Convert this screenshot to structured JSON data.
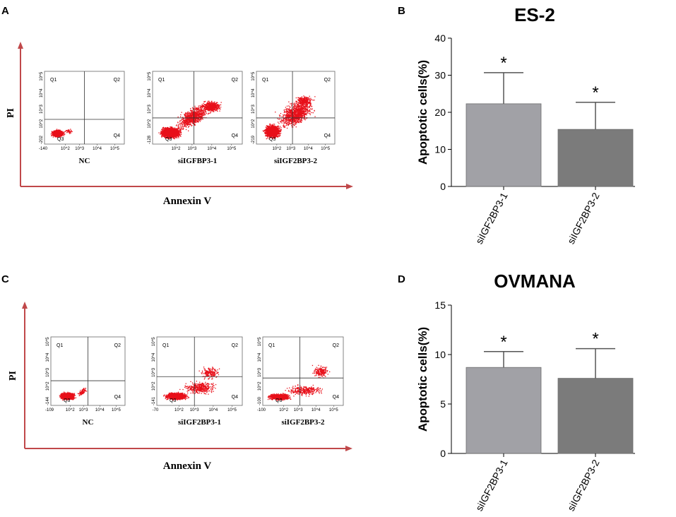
{
  "panels": {
    "a": {
      "label": "A",
      "y_axis": "PI",
      "x_axis": "Annexin V",
      "plots": [
        {
          "name": "NC",
          "quadrants": [
            "Q1",
            "Q2",
            "Q3",
            "Q4"
          ],
          "xticks": [
            "10^2",
            "10^3",
            "10^4",
            "10^5"
          ],
          "xzero": "-140",
          "yticks": [
            "10^2",
            "10^3",
            "10^4",
            "10^5"
          ],
          "yzero": "-202"
        },
        {
          "name": "siIGFBP3-1",
          "quadrants": [
            "Q1",
            "Q2",
            "Q3",
            "Q4"
          ],
          "xticks": [
            "10^2",
            "10^3",
            "10^4",
            "10^5"
          ],
          "xzero": "",
          "yticks": [
            "10^2",
            "10^3",
            "10^4",
            "10^5"
          ],
          "yzero": "-128"
        },
        {
          "name": "siIGF2BP3-2",
          "quadrants": [
            "Q1",
            "Q2",
            "Q3",
            "Q4"
          ],
          "xticks": [
            "10^2",
            "10^3",
            "10^4",
            "10^5"
          ],
          "xzero": "",
          "yticks": [
            "10^2",
            "10^3",
            "10^4",
            "10^5"
          ],
          "yzero": "-219"
        }
      ]
    },
    "c": {
      "label": "C",
      "y_axis": "PI",
      "x_axis": "Annexin V",
      "plots": [
        {
          "name": "NC",
          "quadrants": [
            "Q1",
            "Q2",
            "Q3",
            "Q4"
          ],
          "xticks": [
            "10^2",
            "10^3",
            "10^4",
            "10^5"
          ],
          "xzero": "-109",
          "yticks": [
            "10^2",
            "10^3",
            "10^4",
            "10^5"
          ],
          "yzero": "-144"
        },
        {
          "name": "siIGF2BP3-1",
          "quadrants": [
            "Q1",
            "Q2",
            "Q3",
            "Q4"
          ],
          "xticks": [
            "10^2",
            "10^3",
            "10^4",
            "10^5"
          ],
          "xzero": "-70",
          "yticks": [
            "10^2",
            "10^3",
            "10^4",
            "10^5"
          ],
          "yzero": "-141"
        },
        {
          "name": "siIGF2BP3-2",
          "quadrants": [
            "Q1",
            "Q2",
            "Q3",
            "Q4"
          ],
          "xticks": [
            "10^2",
            "10^3",
            "10^4",
            "10^5"
          ],
          "xzero": "-100",
          "yticks": [
            "10^2",
            "10^3",
            "10^4",
            "10^5"
          ],
          "yzero": "-100"
        }
      ]
    }
  },
  "chart_data": [
    {
      "panel": "B",
      "type": "bar",
      "title": "ES-2",
      "ylabel": "Apoptotic cells(%)",
      "xlabel": "",
      "categories": [
        "siIGF2BP3-1",
        "siIGF2BP3-2"
      ],
      "values": [
        22.3,
        15.4
      ],
      "errors": [
        8.4,
        7.3
      ],
      "significance": [
        "*",
        "*"
      ],
      "ylim": [
        0,
        40
      ],
      "yticks": [
        0,
        10,
        20,
        30,
        40
      ],
      "colors": [
        "#a1a1a6",
        "#7b7b7b"
      ]
    },
    {
      "panel": "D",
      "type": "bar",
      "title": "OVMANA",
      "ylabel": "Apoptotic cells(%)",
      "xlabel": "",
      "categories": [
        "siIGF2BP3-1",
        "siIGF2BP3-2"
      ],
      "values": [
        8.7,
        7.6
      ],
      "errors": [
        1.6,
        3.0
      ],
      "significance": [
        "*",
        "*"
      ],
      "ylim": [
        0,
        15
      ],
      "yticks": [
        0,
        5,
        10,
        15
      ],
      "colors": [
        "#a1a1a6",
        "#7b7b7b"
      ]
    }
  ]
}
